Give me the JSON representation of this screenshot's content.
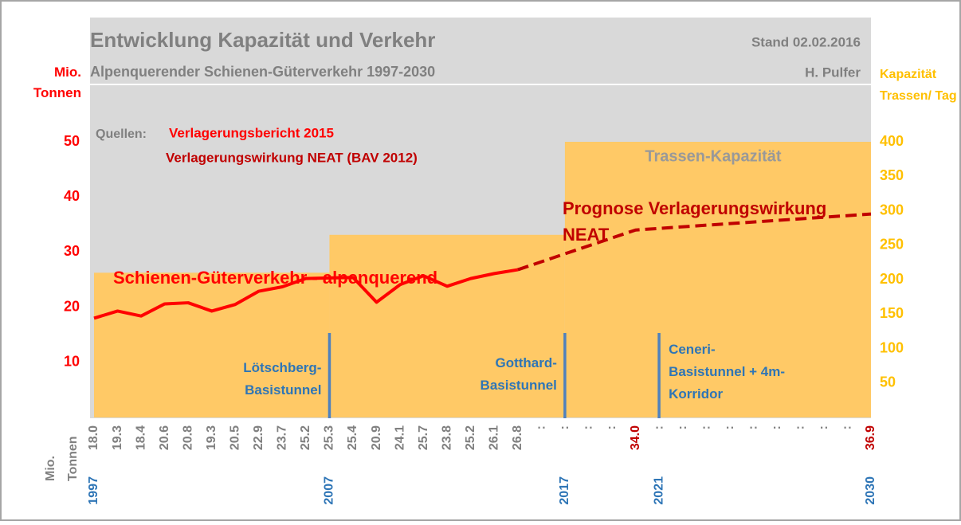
{
  "chart_data": {
    "type": "line",
    "title": "Entwicklung Kapazität und Verkehr",
    "subtitle": "Alpenquerender Schienen-Güterverkehr 1997-2030",
    "date": "Stand 02.02.2016",
    "author": "H. Pulfer",
    "sources_label": "Quellen:",
    "sources": [
      "Verlagerungsbericht 2015",
      "Verlagerungswirkung NEAT (BAV 2012)"
    ],
    "y_label": "Mio. Tonnen",
    "y2_label": "Kapazität Trassen/ Tag",
    "value_row_label": "Mio. Tonnen",
    "x": [
      1997,
      1998,
      1999,
      2000,
      2001,
      2002,
      2003,
      2004,
      2005,
      2006,
      2007,
      2008,
      2009,
      2010,
      2011,
      2012,
      2013,
      2014,
      2015,
      2016,
      2017,
      2018,
      2019,
      2020,
      2021,
      2022,
      2023,
      2024,
      2025,
      2026,
      2027,
      2028,
      2029,
      2030
    ],
    "xlim": [
      1997,
      2030
    ],
    "xticks": [
      1997,
      2007,
      2017,
      2021,
      2030
    ],
    "ylim": [
      0,
      50
    ],
    "yticks": [
      10,
      20,
      30,
      40,
      50
    ],
    "y2lim": [
      0,
      400
    ],
    "y2ticks": [
      50,
      100,
      150,
      200,
      250,
      300,
      350,
      400
    ],
    "series": [
      {
        "name": "Schienen-Güterverkehr - alpenquerend",
        "color": "#ff0000",
        "values": [
          18.0,
          19.3,
          18.4,
          20.6,
          20.8,
          19.3,
          20.5,
          22.9,
          23.7,
          25.2,
          25.3,
          25.4,
          20.9,
          24.1,
          25.7,
          23.8,
          25.2,
          26.1,
          26.8,
          null,
          null,
          null,
          null,
          null,
          null,
          null,
          null,
          null,
          null,
          null,
          null,
          null,
          null,
          null
        ],
        "value_labels": [
          "18.0",
          "19.3",
          "18.4",
          "20.6",
          "20.8",
          "19.3",
          "20.5",
          "22.9",
          "23.7",
          "25.2",
          "25.3",
          "25.4",
          "20.9",
          "24.1",
          "25.7",
          "23.8",
          "25.2",
          "26.1",
          "26.8",
          ":",
          ":",
          ":",
          ":",
          null,
          ":",
          ":",
          ":",
          ":",
          ":",
          ":",
          ":",
          ":",
          ":",
          null
        ]
      },
      {
        "name": "Prognose Verlagerungswirkung NEAT",
        "color": "#c00000",
        "dashed": true,
        "x": [
          2015,
          2020,
          2030
        ],
        "values": [
          26.8,
          34.0,
          36.9
        ],
        "value_labels": [
          "26.8",
          "34.0",
          "36.9"
        ]
      }
    ],
    "capacity": {
      "name": "Trassen-Kapazität",
      "color": "#ffc966",
      "axis": "y2",
      "bins": [
        1997,
        2007,
        2017,
        2030
      ],
      "values": [
        210,
        265,
        400
      ]
    },
    "milestones": [
      {
        "x": 2007,
        "label": "Lötschberg-Basistunnel"
      },
      {
        "x": 2017,
        "label": "Gotthard-Basistunnel"
      },
      {
        "x": 2021,
        "label": "Ceneri-Basistunnel + 4m-Korridor"
      }
    ]
  }
}
